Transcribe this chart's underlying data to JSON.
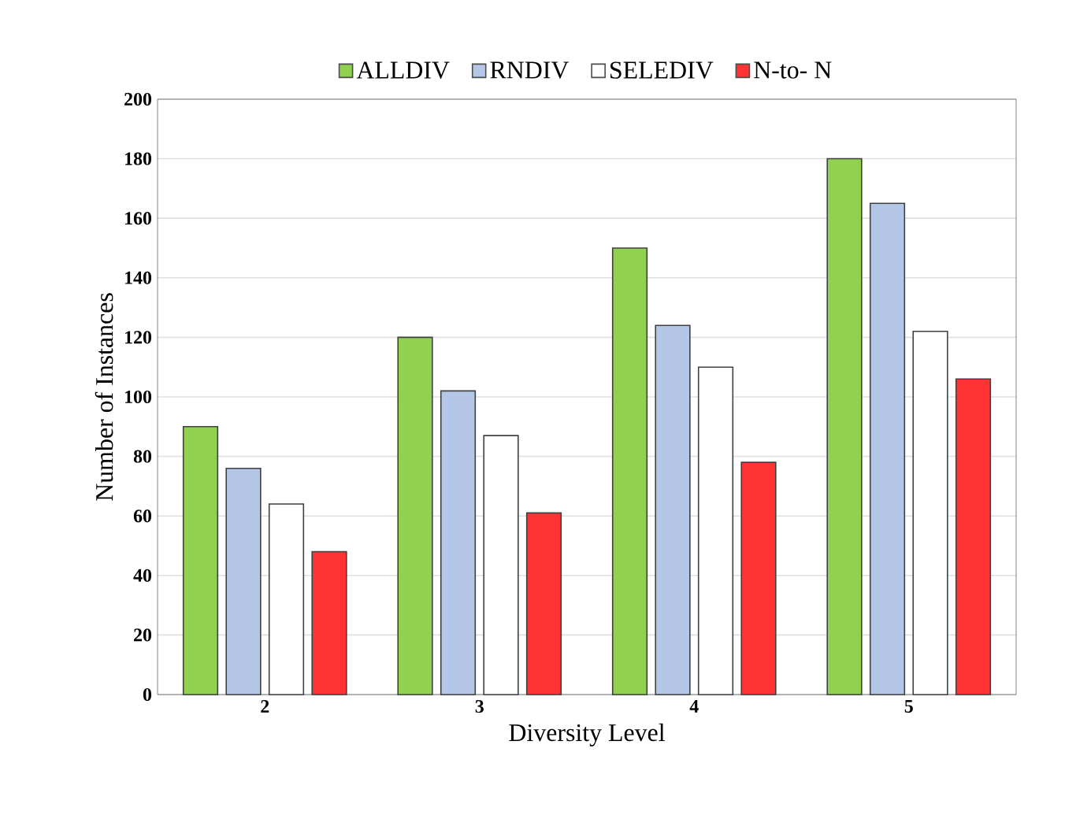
{
  "chart_data": {
    "type": "bar",
    "xlabel": "Diversity Level",
    "ylabel": "Number of Instances",
    "categories": [
      "2",
      "3",
      "4",
      "5"
    ],
    "series": [
      {
        "name": "ALLDIV",
        "color": "#92d050",
        "values": [
          90,
          120,
          150,
          180
        ]
      },
      {
        "name": "RNDIV",
        "color": "#b4c7e7",
        "values": [
          76,
          102,
          124,
          165
        ]
      },
      {
        "name": "SELEDIV",
        "color": "#ffffff",
        "values": [
          64,
          87,
          110,
          122
        ]
      },
      {
        "name": "N-to- N",
        "color": "#ff3333",
        "values": [
          48,
          61,
          78,
          106
        ]
      }
    ],
    "ylim": [
      0,
      200
    ],
    "yticks": [
      0,
      20,
      40,
      60,
      80,
      100,
      120,
      140,
      160,
      180,
      200
    ],
    "grid": "y",
    "legend": "top"
  }
}
